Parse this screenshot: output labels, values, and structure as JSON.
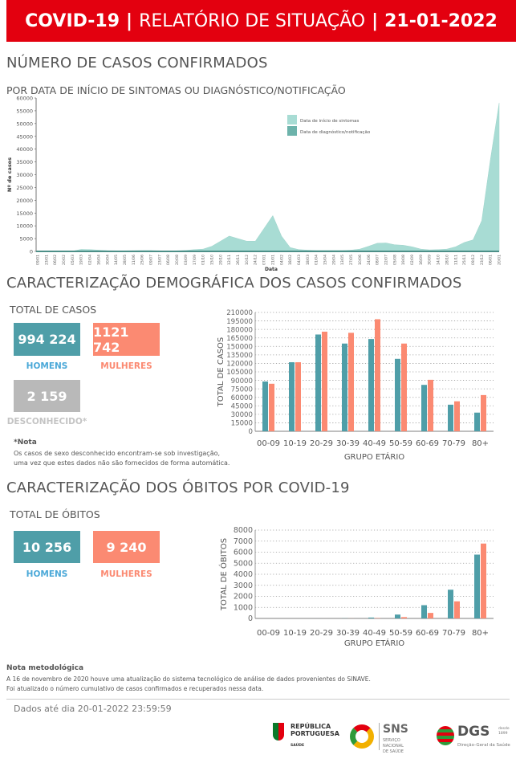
{
  "header": {
    "part1": "COVID-19",
    "sep": "|",
    "part2": "RELATÓRIO DE SITUAÇÃO",
    "sep2": "|",
    "date": "21-01-2022"
  },
  "section1": {
    "title": "NÚMERO DE CASOS CONFIRMADOS",
    "subtitle": "POR DATA DE INÍCIO DE SINTOMAS OU DIAGNÓSTICO/NOTIFICAÇÃO"
  },
  "section2": {
    "title": "CARACTERIZAÇÃO DEMOGRÁFICA DOS CASOS CONFIRMADOS",
    "total_label": "TOTAL DE CASOS",
    "men_value": "994 224",
    "women_value": "1121 742",
    "unknown_value": "2 159",
    "men_label": "HOMENS",
    "women_label": "MULHERES",
    "unknown_label": "DESCONHECIDO*",
    "note_title": "*Nota",
    "note_line1": "Os casos de sexo desconhecido encontram-se sob investigação,",
    "note_line2": "uma vez que estes dados não são fornecidos de forma automática."
  },
  "section3": {
    "title": "CARACTERIZAÇÃO DOS ÓBITOS POR COVID-19",
    "total_label": "TOTAL DE ÓBITOS",
    "men_value": "10 256",
    "women_value": "9 240",
    "men_label": "HOMENS",
    "women_label": "MULHERES"
  },
  "method_note": {
    "title": "Nota metodológica",
    "line1": "A 16 de novembro de 2020 houve uma atualização do sistema tecnológico de análise de dados provenientes do SINAVE.",
    "line2": "Foi atualizado o número cumulativo de casos confirmados e recuperados nessa data."
  },
  "footer": {
    "data_until": "Dados até dia 20-01-2022 23:59:59",
    "logo1_line1": "REPÚBLICA",
    "logo1_line2": "PORTUGUESA",
    "logo1_line3": "SAÚDE",
    "logo2_title": "SNS",
    "logo2_line1": "SERVIÇO NACIONAL",
    "logo2_line2": "DE SAÚDE",
    "logo3_title": "DGS",
    "logo3_since": "desde 1899",
    "logo3_line": "Direção-Geral da Saúde"
  },
  "colors": {
    "red": "#e3000f",
    "teal": "#4f9ea8",
    "salmon": "#fb8a72",
    "grey": "#b9b9b9",
    "men_label": "#4aa8d8",
    "symptoms": "#a8dcd4",
    "notification": "#6db3ab"
  },
  "chart_data": [
    {
      "type": "area",
      "title": "",
      "xlabel": "Data",
      "ylabel": "Nº de casos",
      "ylim": [
        0,
        60000
      ],
      "yticks": [
        0,
        5000,
        10000,
        15000,
        20000,
        25000,
        30000,
        35000,
        40000,
        45000,
        50000,
        55000,
        60000
      ],
      "legend": [
        "Data de início de sintomas",
        "Data de diagnóstico/notificação"
      ],
      "legend_position": "top-right",
      "x": [
        "09/01",
        "23/01",
        "06/02",
        "20/02",
        "05/03",
        "19/03",
        "02/04",
        "16/04",
        "30/04",
        "14/05",
        "28/05",
        "11/06",
        "25/06",
        "09/07",
        "23/07",
        "06/08",
        "20/08",
        "03/09",
        "17/09",
        "01/10",
        "15/10",
        "29/10",
        "12/11",
        "26/11",
        "10/12",
        "24/12",
        "07/01",
        "21/01",
        "04/02",
        "18/02",
        "04/03",
        "18/03",
        "01/04",
        "15/04",
        "29/04",
        "13/05",
        "27/05",
        "10/06",
        "24/06",
        "08/07",
        "22/07",
        "05/08",
        "19/08",
        "02/09",
        "16/09",
        "30/09",
        "14/10",
        "28/10",
        "11/11",
        "25/11",
        "09/12",
        "23/12",
        "06/01",
        "20/01"
      ],
      "series": [
        {
          "name": "Data de início de sintomas",
          "values": [
            0,
            0,
            0,
            0,
            100,
            800,
            700,
            500,
            300,
            250,
            250,
            300,
            350,
            350,
            250,
            200,
            250,
            400,
            700,
            900,
            2000,
            4000,
            6000,
            5000,
            4000,
            4000,
            9000,
            14000,
            6000,
            1500,
            700,
            500,
            400,
            400,
            400,
            400,
            500,
            900,
            2000,
            3200,
            3300,
            2600,
            2400,
            1800,
            900,
            600,
            700,
            900,
            1800,
            3500,
            4500,
            12000,
            36000,
            58000
          ]
        }
      ]
    },
    {
      "type": "bar",
      "xlabel": "GRUPO ETÁRIO",
      "ylabel": "TOTAL DE CASOS",
      "ylim": [
        0,
        210000
      ],
      "yticks": [
        0,
        15000,
        30000,
        45000,
        60000,
        75000,
        90000,
        105000,
        120000,
        135000,
        150000,
        165000,
        180000,
        195000,
        210000
      ],
      "categories": [
        "00-09",
        "10-19",
        "20-29",
        "30-39",
        "40-49",
        "50-59",
        "60-69",
        "70-79",
        "80+"
      ],
      "series": [
        {
          "name": "Homens",
          "values": [
            88000,
            122000,
            171000,
            155000,
            163000,
            128000,
            82000,
            47000,
            33000
          ]
        },
        {
          "name": "Mulheres",
          "values": [
            84000,
            122000,
            176000,
            174000,
            198000,
            155000,
            91000,
            53000,
            64000
          ]
        }
      ]
    },
    {
      "type": "bar",
      "xlabel": "GRUPO ETÁRIO",
      "ylabel": "TOTAL DE ÓBITOS",
      "ylim": [
        0,
        8000
      ],
      "yticks": [
        0,
        1000,
        2000,
        3000,
        4000,
        5000,
        6000,
        7000,
        8000
      ],
      "categories": [
        "00-09",
        "10-19",
        "20-29",
        "30-39",
        "40-49",
        "50-59",
        "60-69",
        "70-79",
        "80+"
      ],
      "series": [
        {
          "name": "Homens",
          "values": [
            0,
            0,
            2,
            10,
            80,
            350,
            1200,
            2600,
            5780
          ]
        },
        {
          "name": "Mulheres",
          "values": [
            0,
            0,
            1,
            5,
            30,
            120,
            500,
            1550,
            6780
          ]
        }
      ]
    }
  ]
}
